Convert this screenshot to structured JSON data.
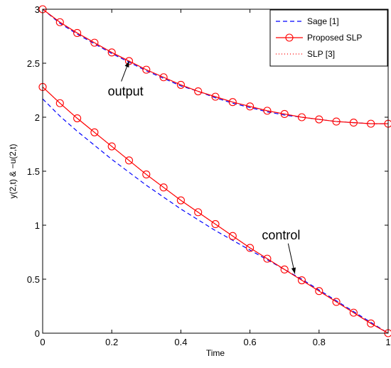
{
  "chart_data": {
    "type": "line",
    "title": "",
    "xlabel": "Time",
    "ylabel": "y(2,t) & −u(2,t)",
    "xlim": [
      0,
      1
    ],
    "ylim": [
      0,
      3
    ],
    "xticks": [
      "0",
      "0.2",
      "0.4",
      "0.6",
      "0.8",
      "1"
    ],
    "yticks": [
      "0",
      "0.5",
      "1",
      "1.5",
      "2",
      "2.5",
      "3"
    ],
    "grid": false,
    "legend_position": "top-right",
    "x": [
      0,
      0.05,
      0.1,
      0.15,
      0.2,
      0.25,
      0.3,
      0.35,
      0.4,
      0.45,
      0.5,
      0.55,
      0.6,
      0.65,
      0.7,
      0.75,
      0.8,
      0.85,
      0.9,
      0.95,
      1.0
    ],
    "series": [
      {
        "name": "Sage [1]",
        "style": "dashed",
        "color": "#0000ff",
        "curves": [
          [
            3.0,
            2.87,
            2.77,
            2.68,
            2.59,
            2.51,
            2.43,
            2.36,
            2.29,
            2.24,
            2.18,
            2.13,
            2.09,
            2.05,
            2.02,
            2.0,
            1.98,
            1.96,
            1.95,
            1.94,
            1.94
          ],
          [
            2.17,
            2.01,
            1.87,
            1.74,
            1.61,
            1.49,
            1.37,
            1.26,
            1.15,
            1.05,
            0.95,
            0.86,
            0.77,
            0.68,
            0.59,
            0.5,
            0.4,
            0.3,
            0.2,
            0.1,
            0.0
          ]
        ]
      },
      {
        "name": "Proposed SLP",
        "style": "solid-circle",
        "color": "#ff0000",
        "curves": [
          [
            3.0,
            2.88,
            2.78,
            2.69,
            2.6,
            2.52,
            2.44,
            2.37,
            2.3,
            2.24,
            2.19,
            2.14,
            2.1,
            2.06,
            2.03,
            2.0,
            1.98,
            1.96,
            1.95,
            1.94,
            1.94
          ],
          [
            2.28,
            2.13,
            1.99,
            1.86,
            1.73,
            1.6,
            1.47,
            1.35,
            1.23,
            1.12,
            1.01,
            0.9,
            0.79,
            0.69,
            0.59,
            0.49,
            0.39,
            0.29,
            0.19,
            0.09,
            0.0
          ]
        ]
      },
      {
        "name": "SLP [3]",
        "style": "dotted",
        "color": "#ff0000",
        "curves": [
          [
            3.0,
            2.88,
            2.78,
            2.69,
            2.6,
            2.52,
            2.44,
            2.37,
            2.3,
            2.24,
            2.19,
            2.14,
            2.1,
            2.06,
            2.03,
            2.0,
            1.98,
            1.96,
            1.95,
            1.94,
            1.94
          ],
          [
            2.28,
            2.13,
            1.99,
            1.86,
            1.73,
            1.6,
            1.47,
            1.35,
            1.23,
            1.12,
            1.01,
            0.9,
            0.79,
            0.69,
            0.59,
            0.49,
            0.39,
            0.29,
            0.19,
            0.09,
            0.0
          ]
        ]
      }
    ],
    "annotations": [
      {
        "text": "output",
        "text_xy": [
          0.24,
          2.2
        ],
        "arrow_to": [
          0.25,
          2.52
        ]
      },
      {
        "text": "control",
        "text_xy": [
          0.69,
          0.87
        ],
        "arrow_to": [
          0.73,
          0.55
        ]
      }
    ]
  }
}
